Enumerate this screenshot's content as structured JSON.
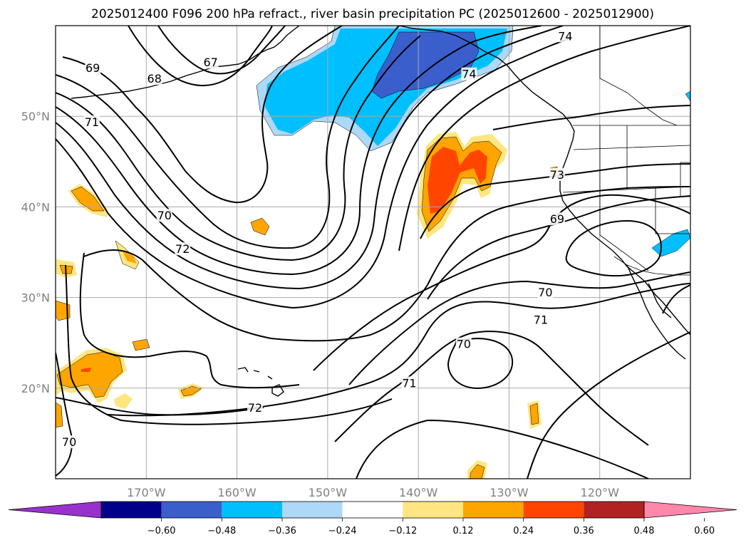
{
  "title": "2025012400 F096 200 hPa refract., river basin precipitation PC (2025012600 - 2025012900)",
  "map": {
    "lon_range": [
      -180,
      -110
    ],
    "lat_range": [
      10,
      60
    ],
    "lon_ticks": [
      {
        "lon": -170,
        "label": "170°W"
      },
      {
        "lon": -160,
        "label": "160°W"
      },
      {
        "lon": -150,
        "label": "150°W"
      },
      {
        "lon": -140,
        "label": "140°W"
      },
      {
        "lon": -130,
        "label": "130°W"
      },
      {
        "lon": -120,
        "label": "120°W"
      }
    ],
    "lat_ticks": [
      {
        "lat": 50,
        "label": "50°N"
      },
      {
        "lat": 40,
        "label": "40°N"
      },
      {
        "lat": 30,
        "label": "30°N"
      },
      {
        "lat": 20,
        "label": "20°N"
      }
    ],
    "grid": true
  },
  "contour_labels": [
    {
      "text": "69",
      "lon": -175.9,
      "lat": 55.3
    },
    {
      "text": "67",
      "lon": -162.9,
      "lat": 55.9
    },
    {
      "text": "68",
      "lon": -169.1,
      "lat": 54.1
    },
    {
      "text": "71",
      "lon": -176.0,
      "lat": 49.3
    },
    {
      "text": "74",
      "lon": -123.8,
      "lat": 58.8
    },
    {
      "text": "74",
      "lon": -134.4,
      "lat": 54.6
    },
    {
      "text": "73",
      "lon": -124.7,
      "lat": 43.5
    },
    {
      "text": "69",
      "lon": -124.7,
      "lat": 38.6
    },
    {
      "text": "70",
      "lon": -168.0,
      "lat": 39.0
    },
    {
      "text": "72",
      "lon": -166.0,
      "lat": 35.3
    },
    {
      "text": "70",
      "lon": -126.0,
      "lat": 30.5
    },
    {
      "text": "71",
      "lon": -126.5,
      "lat": 27.5
    },
    {
      "text": "70",
      "lon": -135.0,
      "lat": 24.8
    },
    {
      "text": "71",
      "lon": -141.0,
      "lat": 20.5
    },
    {
      "text": "72",
      "lon": -158.0,
      "lat": 17.8
    },
    {
      "text": "70",
      "lon": -178.5,
      "lat": 14.0
    }
  ],
  "colorbar": {
    "colors": [
      "#9932cc",
      "#00008b",
      "#3a5fcd",
      "#00bfff",
      "#add8f7",
      "#ffffff",
      "#ffe680",
      "#ffa500",
      "#ff4500",
      "#b22222",
      "#ff88aa"
    ],
    "tick_labels": [
      "−0.60",
      "−0.48",
      "−0.36",
      "−0.24",
      "−0.12",
      "0.12",
      "0.24",
      "0.36",
      "0.48",
      "0.60"
    ],
    "extend": "both"
  }
}
